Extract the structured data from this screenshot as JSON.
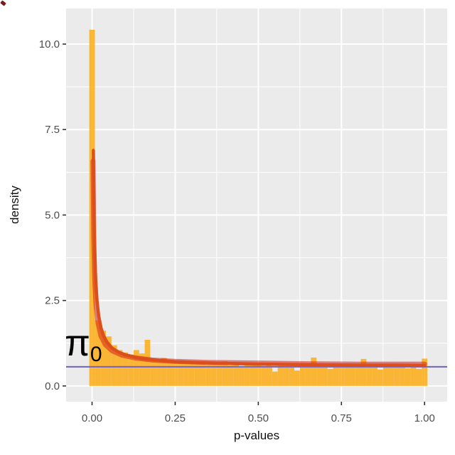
{
  "chart_data": {
    "type": "histogram",
    "title": "",
    "xlabel": "p-values",
    "ylabel": "density",
    "xlim": [
      -0.078,
      1.068
    ],
    "ylim": [
      -0.46,
      11.04
    ],
    "grid": true,
    "legend": "none",
    "x_ticks": {
      "values": [
        0,
        0.25,
        0.5,
        0.75,
        1.0
      ],
      "labels": [
        "0.00",
        "0.25",
        "0.50",
        "0.75",
        "1.00"
      ],
      "minor": [
        0.125,
        0.375,
        0.625,
        0.875
      ]
    },
    "y_ticks": {
      "values": [
        0,
        2.5,
        5.0,
        7.5,
        10.0
      ],
      "labels": [
        "0.0",
        "2.5",
        "5.0",
        "7.5",
        "10.0"
      ],
      "minor": [
        1.25,
        3.75,
        6.25,
        8.75
      ]
    },
    "histogram": {
      "first_center": 0,
      "step": 0.0166667,
      "bin_width": 0.0166667,
      "densities": [
        10.42,
        1.92,
        1.62,
        1.45,
        1.19,
        1.05,
        0.98,
        0.92,
        1.05,
        0.95,
        1.35,
        0.78,
        0.72,
        0.82,
        0.75,
        0.68,
        0.75,
        0.7,
        0.65,
        0.72,
        0.68,
        0.62,
        0.7,
        0.65,
        0.72,
        0.6,
        0.65,
        0.58,
        0.68,
        0.62,
        0.65,
        0.58,
        0.62,
        0.42,
        0.6,
        0.65,
        0.58,
        0.45,
        0.62,
        0.58,
        0.83,
        0.6,
        0.55,
        0.5,
        0.62,
        0.58,
        0.65,
        0.6,
        0.55,
        0.79,
        0.58,
        0.62,
        0.48,
        0.6,
        0.55,
        0.62,
        0.58,
        0.52,
        0.6,
        0.5,
        0.8
      ]
    },
    "series": [
      {
        "name": "density-fit-band",
        "type": "line",
        "color": "rgba(207,17,17,0.5)",
        "stroke_width": 7,
        "x": [
          0.003,
          0.005,
          0.008,
          0.012,
          0.018,
          0.027,
          0.04,
          0.06,
          0.09,
          0.13,
          0.18,
          0.25,
          0.35,
          0.5,
          0.65,
          0.8,
          1.0
        ],
        "y": [
          6.58,
          4.41,
          3.12,
          2.36,
          1.84,
          1.46,
          1.21,
          1.03,
          0.9,
          0.82,
          0.76,
          0.72,
          0.69,
          0.67,
          0.65,
          0.64,
          0.64
        ]
      },
      {
        "name": "density-fit-solid",
        "type": "line",
        "color": "#DC4E1C",
        "stroke_width": 4.5,
        "x": [
          0.004,
          0.006,
          0.008,
          0.011,
          0.015,
          0.02,
          0.027,
          0.035,
          0.045,
          0.06,
          0.08,
          0.1,
          0.13,
          0.16,
          0.2,
          0.25,
          0.3,
          0.4,
          0.5,
          0.6,
          0.7,
          0.8,
          0.9,
          1.0
        ],
        "y": [
          6.89,
          4.96,
          3.95,
          3.11,
          2.49,
          2.05,
          1.7,
          1.46,
          1.28,
          1.11,
          0.99,
          0.91,
          0.84,
          0.79,
          0.75,
          0.71,
          0.69,
          0.66,
          0.64,
          0.63,
          0.62,
          0.61,
          0.61,
          0.6
        ]
      }
    ],
    "pi0_line": {
      "value": 0.56,
      "color": "#7569C0",
      "stroke_width": 2.2
    },
    "annotation": {
      "symbol": "π",
      "sub": "0"
    },
    "colors": {
      "panel_bg": "#EBEBEB",
      "grid_major": "#FFFFFF",
      "grid_minor": "#FFFFFF",
      "bar_fill": "rgba(255,165,0,0.78)",
      "tick_mark": "#333333",
      "tick_label": "#4d4d4d",
      "axis_title": "#111111"
    }
  }
}
